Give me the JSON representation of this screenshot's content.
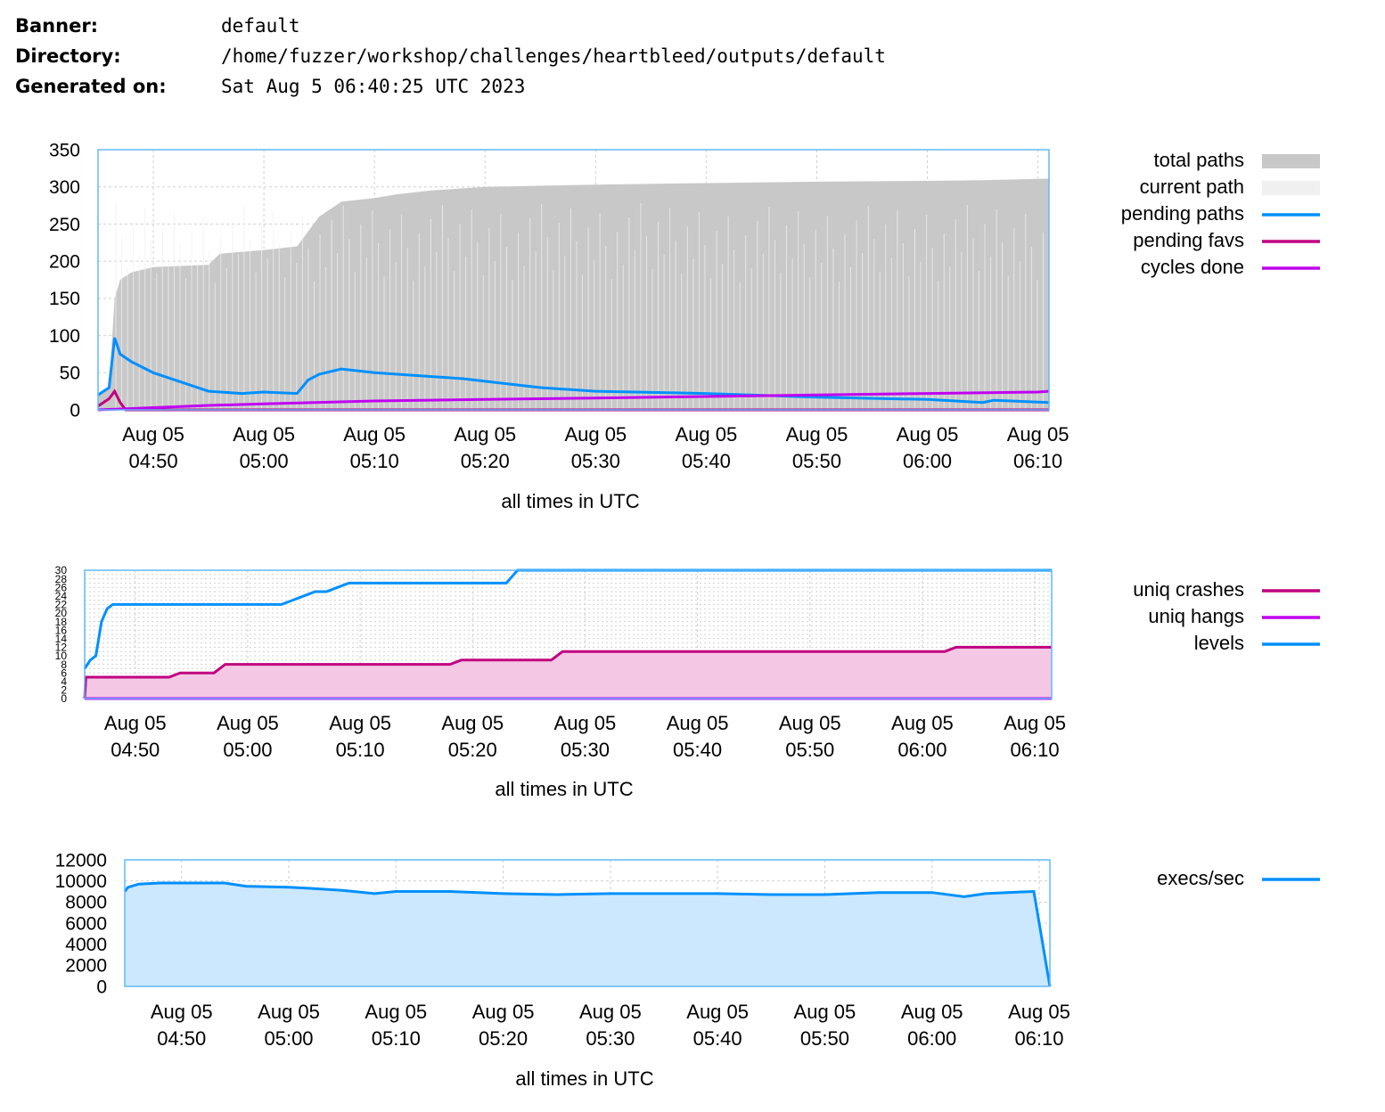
{
  "header": {
    "banner_label": "Banner:",
    "banner_value": "default",
    "directory_label": "Directory:",
    "directory_value": "/home/fuzzer/workshop/challenges/heartbleed/outputs/default",
    "generated_label": "Generated on:",
    "generated_value": "Sat Aug 5 06:40:25 UTC 2023"
  },
  "colors": {
    "total_paths": "#c8c8c8",
    "current_path": "#f0f0f0",
    "pending_paths": "#0090ff",
    "pending_favs": "#c00080",
    "cycles_done": "#c000f0",
    "uniq_crashes": "#c00080",
    "uniq_hangs": "#c000f0",
    "levels": "#0090ff",
    "execs": "#0090ff",
    "execs_fill": "#cce8ff",
    "crash_fill": "#f4c8e4",
    "border": "#60b8ff",
    "grid": "#d0d0d0"
  },
  "chart_data": [
    {
      "type": "area",
      "xlabel": "all times in UTC",
      "ylim": [
        0,
        350
      ],
      "y_ticks": [
        "0",
        "50",
        "100",
        "150",
        "200",
        "250",
        "300",
        "350"
      ],
      "x_ticks": [
        {
          "date": "Aug 05",
          "time": "04:50"
        },
        {
          "date": "Aug 05",
          "time": "05:00"
        },
        {
          "date": "Aug 05",
          "time": "05:10"
        },
        {
          "date": "Aug 05",
          "time": "05:20"
        },
        {
          "date": "Aug 05",
          "time": "05:30"
        },
        {
          "date": "Aug 05",
          "time": "05:40"
        },
        {
          "date": "Aug 05",
          "time": "05:50"
        },
        {
          "date": "Aug 05",
          "time": "06:00"
        },
        {
          "date": "Aug 05",
          "time": "06:10"
        }
      ],
      "x_range": [
        "04:45",
        "06:11"
      ],
      "legend": [
        "total paths",
        "current path",
        "pending paths",
        "pending favs",
        "cycles done"
      ],
      "series": [
        {
          "name": "total paths",
          "x": [
            "04:45",
            "04:46",
            "04:46.5",
            "04:47",
            "04:48",
            "04:50",
            "04:55",
            "04:56",
            "05:00",
            "05:03",
            "05:04",
            "05:05",
            "05:06",
            "05:07",
            "05:10",
            "05:12",
            "05:15",
            "05:20",
            "05:30",
            "05:40",
            "05:50",
            "06:00",
            "06:05",
            "06:11"
          ],
          "values": [
            20,
            30,
            150,
            175,
            185,
            192,
            195,
            210,
            215,
            220,
            240,
            260,
            270,
            280,
            285,
            290,
            295,
            300,
            303,
            305,
            307,
            308,
            309,
            311
          ]
        },
        {
          "name": "pending paths",
          "x": [
            "04:45",
            "04:46",
            "04:46.5",
            "04:47",
            "04:48",
            "04:50",
            "04:53",
            "04:55",
            "04:58",
            "05:00",
            "05:03",
            "05:04",
            "05:05",
            "05:07",
            "05:10",
            "05:15",
            "05:18",
            "05:22",
            "05:25",
            "05:30",
            "05:40",
            "05:50",
            "06:00",
            "06:05",
            "06:06",
            "06:11"
          ],
          "values": [
            20,
            30,
            97,
            75,
            65,
            50,
            35,
            25,
            22,
            24,
            22,
            40,
            48,
            55,
            50,
            45,
            42,
            35,
            30,
            25,
            22,
            17,
            14,
            10,
            13,
            10
          ]
        },
        {
          "name": "pending favs",
          "x": [
            "04:45",
            "04:46",
            "04:46.5",
            "04:47",
            "04:47.5",
            "06:11"
          ],
          "values": [
            5,
            15,
            25,
            10,
            0,
            0
          ]
        },
        {
          "name": "cycles done",
          "x": [
            "04:45",
            "04:50",
            "04:55",
            "05:00",
            "05:10",
            "05:20",
            "05:30",
            "05:40",
            "05:50",
            "06:00",
            "06:10",
            "06:11"
          ],
          "values": [
            0,
            3,
            6,
            8,
            12,
            14,
            16,
            18,
            20,
            22,
            24,
            25
          ]
        }
      ]
    },
    {
      "type": "area",
      "xlabel": "all times in UTC",
      "y_ticks": [
        "0",
        "2",
        "4",
        "6",
        "8",
        "10",
        "12",
        "14",
        "16",
        "18",
        "20",
        "22",
        "24",
        "26",
        "28",
        "30"
      ],
      "x_ticks": [
        {
          "date": "Aug 05",
          "time": "04:50"
        },
        {
          "date": "Aug 05",
          "time": "05:00"
        },
        {
          "date": "Aug 05",
          "time": "05:10"
        },
        {
          "date": "Aug 05",
          "time": "05:20"
        },
        {
          "date": "Aug 05",
          "time": "05:30"
        },
        {
          "date": "Aug 05",
          "time": "05:40"
        },
        {
          "date": "Aug 05",
          "time": "05:50"
        },
        {
          "date": "Aug 05",
          "time": "06:00"
        },
        {
          "date": "Aug 05",
          "time": "06:10"
        }
      ],
      "x_range": [
        "04:45.5",
        "06:11.5"
      ],
      "legend": [
        "uniq crashes",
        "uniq hangs",
        "levels"
      ],
      "series": [
        {
          "name": "uniq crashes",
          "x": [
            "04:45.5",
            "04:45.6",
            "04:53",
            "04:54",
            "04:57",
            "04:58",
            "05:00",
            "05:18",
            "05:19",
            "05:27",
            "05:28",
            "06:02",
            "06:03",
            "06:11.5"
          ],
          "values": [
            0,
            5,
            5,
            6,
            6,
            8,
            8,
            8,
            9,
            9,
            11,
            11,
            12,
            12
          ]
        },
        {
          "name": "uniq hangs",
          "x": [
            "04:45.5",
            "06:11.5"
          ],
          "values": [
            0,
            0
          ]
        },
        {
          "name": "levels",
          "x": [
            "04:45.5",
            "04:46",
            "04:46.5",
            "04:47",
            "04:47.5",
            "04:48",
            "04:49",
            "05:03",
            "05:04",
            "05:05",
            "05:06",
            "05:07",
            "05:08",
            "05:09",
            "05:23",
            "05:24",
            "06:11.5"
          ],
          "values": [
            7,
            9,
            10,
            18,
            21,
            22,
            22,
            22,
            23,
            24,
            25,
            25,
            26,
            27,
            27,
            30,
            30
          ]
        }
      ]
    },
    {
      "type": "area",
      "xlabel": "all times in UTC",
      "ylim": [
        0,
        12000
      ],
      "y_ticks": [
        "0",
        "2000",
        "4000",
        "6000",
        "8000",
        "10000",
        "12000"
      ],
      "x_ticks": [
        {
          "date": "Aug 05",
          "time": "04:50"
        },
        {
          "date": "Aug 05",
          "time": "05:00"
        },
        {
          "date": "Aug 05",
          "time": "05:10"
        },
        {
          "date": "Aug 05",
          "time": "05:20"
        },
        {
          "date": "Aug 05",
          "time": "05:30"
        },
        {
          "date": "Aug 05",
          "time": "05:40"
        },
        {
          "date": "Aug 05",
          "time": "05:50"
        },
        {
          "date": "Aug 05",
          "time": "06:00"
        },
        {
          "date": "Aug 05",
          "time": "06:10"
        }
      ],
      "x_range": [
        "04:44.7",
        "06:11"
      ],
      "legend": [
        "execs/sec"
      ],
      "series": [
        {
          "name": "execs/sec",
          "x": [
            "04:44.7",
            "04:45",
            "04:46",
            "04:48",
            "04:50",
            "04:54",
            "04:56",
            "05:00",
            "05:02",
            "05:05",
            "05:08",
            "05:10",
            "05:15",
            "05:20",
            "05:25",
            "05:30",
            "05:35",
            "05:40",
            "05:45",
            "05:50",
            "05:55",
            "06:00",
            "06:03",
            "06:05",
            "06:07",
            "06:09.5",
            "06:10.5",
            "06:11"
          ],
          "values": [
            9000,
            9400,
            9700,
            9800,
            9800,
            9800,
            9500,
            9400,
            9300,
            9100,
            8800,
            9000,
            9000,
            8800,
            8700,
            8800,
            8800,
            8800,
            8700,
            8700,
            8900,
            8900,
            8500,
            8800,
            8900,
            9000,
            3000,
            0
          ]
        }
      ]
    }
  ]
}
